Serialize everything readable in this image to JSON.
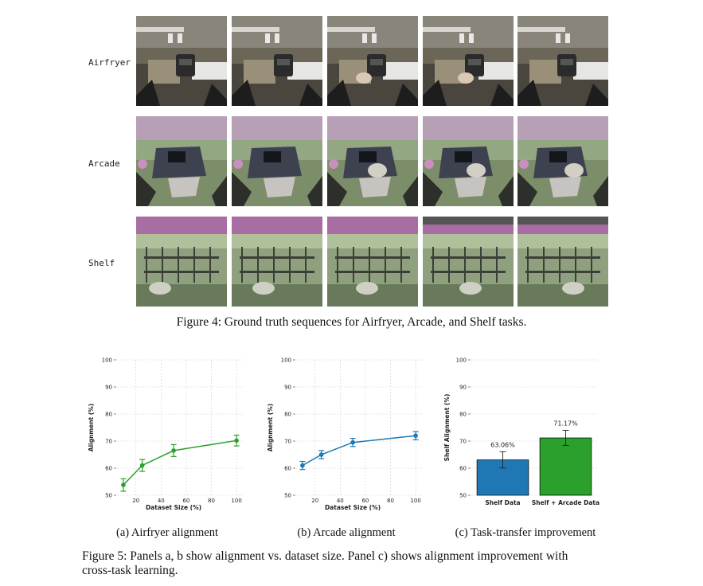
{
  "figure4": {
    "rows": [
      {
        "label": "Airfryer",
        "frames": [
          "Airfryer frame 1",
          "Airfryer frame 2",
          "Airfryer frame 3",
          "Airfryer frame 4",
          "Airfryer frame 5"
        ]
      },
      {
        "label": "Arcade",
        "frames": [
          "Arcade frame 1",
          "Arcade frame 2",
          "Arcade frame 3",
          "Arcade frame 4",
          "Arcade frame 5"
        ]
      },
      {
        "label": "Shelf",
        "frames": [
          "Shelf frame 1",
          "Shelf frame 2",
          "Shelf frame 3",
          "Shelf frame 4",
          "Shelf frame 5"
        ]
      }
    ],
    "caption": "Figure 4: Ground truth sequences for Airfryer, Arcade, and Shelf tasks."
  },
  "figure5": {
    "caption_line1": "Figure 5: Panels a, b show alignment vs. dataset size. Panel c) shows alignment improvement with",
    "caption_line2": "cross-task learning.",
    "subcaptions": [
      "(a) Airfryer alignment",
      "(b) Arcade alignment",
      "(c) Task-transfer improvement"
    ]
  },
  "chart_data": [
    {
      "type": "line",
      "title": "",
      "xlabel": "Dataset Size (%)",
      "ylabel": "Alignment (%)",
      "x": [
        10,
        25,
        50,
        100
      ],
      "series": [
        {
          "name": "Airfryer",
          "values": [
            53.8,
            61.0,
            66.5,
            70.2
          ],
          "errors": [
            2.3,
            2.2,
            2.2,
            2.0
          ],
          "color": "#2ca02c"
        }
      ],
      "xlim": [
        5,
        105
      ],
      "ylim": [
        50,
        100
      ],
      "xticks": [
        20,
        40,
        60,
        80,
        100
      ],
      "yticks": [
        50,
        60,
        70,
        80,
        90,
        100
      ],
      "grid": true
    },
    {
      "type": "line",
      "title": "",
      "xlabel": "Dataset Size (%)",
      "ylabel": "Alignment (%)",
      "x": [
        10,
        25,
        50,
        100
      ],
      "series": [
        {
          "name": "Arcade",
          "values": [
            61.0,
            65.0,
            69.5,
            72.0
          ],
          "errors": [
            1.5,
            1.5,
            1.5,
            1.5
          ],
          "color": "#1f77b4"
        }
      ],
      "xlim": [
        5,
        105
      ],
      "ylim": [
        50,
        100
      ],
      "xticks": [
        20,
        40,
        60,
        80,
        100
      ],
      "yticks": [
        50,
        60,
        70,
        80,
        90,
        100
      ],
      "grid": true
    },
    {
      "type": "bar",
      "title": "",
      "xlabel": "",
      "ylabel": "Shelf Alignment (%)",
      "categories": [
        "Shelf Data",
        "Shelf + Arcade Data"
      ],
      "values": [
        63.06,
        71.17
      ],
      "errors": [
        3.0,
        2.8
      ],
      "data_labels": [
        "63.06%",
        "71.17%"
      ],
      "colors": [
        "#1f77b4",
        "#2ca02c"
      ],
      "ylim": [
        50,
        100
      ],
      "yticks": [
        50,
        60,
        70,
        80,
        90,
        100
      ],
      "grid": true
    }
  ]
}
